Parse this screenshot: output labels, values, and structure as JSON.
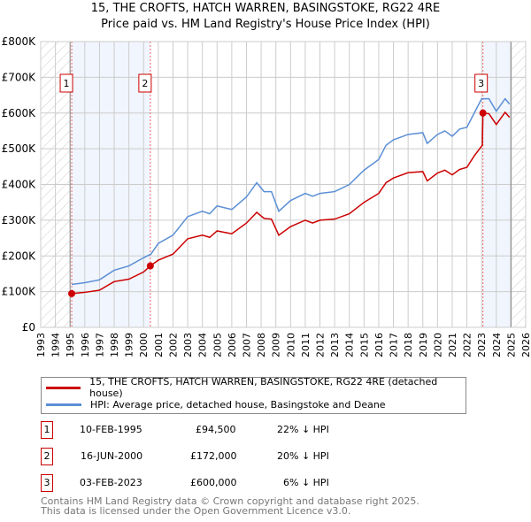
{
  "chart_data": {
    "type": "line",
    "title": "15, THE CROFTS, HATCH WARREN, BASINGSTOKE, RG22 4RE",
    "subtitle": "Price paid vs. HM Land Registry's House Price Index (HPI)",
    "xlim": [
      1993,
      2026
    ],
    "ylim": [
      0,
      800000
    ],
    "x_ticks": [
      "1993",
      "1994",
      "1995",
      "1996",
      "1997",
      "1998",
      "1999",
      "2000",
      "2001",
      "2002",
      "2003",
      "2004",
      "2005",
      "2006",
      "2007",
      "2008",
      "2009",
      "2010",
      "2011",
      "2012",
      "2013",
      "2014",
      "2015",
      "2016",
      "2017",
      "2018",
      "2019",
      "2020",
      "2021",
      "2022",
      "2023",
      "2024",
      "2025",
      "2026"
    ],
    "y_ticks": [
      {
        "v": 0,
        "label": "£0"
      },
      {
        "v": 100000,
        "label": "£100K"
      },
      {
        "v": 200000,
        "label": "£200K"
      },
      {
        "v": 300000,
        "label": "£300K"
      },
      {
        "v": 400000,
        "label": "£400K"
      },
      {
        "v": 500000,
        "label": "£500K"
      },
      {
        "v": 600000,
        "label": "£600K"
      },
      {
        "v": 700000,
        "label": "£700K"
      },
      {
        "v": 800000,
        "label": "£800K"
      }
    ],
    "grid": true,
    "series": [
      {
        "name": "15, THE CROFTS, HATCH WARREN, BASINGSTOKE, RG22 4RE (detached house)",
        "color": "#cc0000",
        "x": [
          1995.11,
          1996,
          1997,
          1998,
          1999,
          2000,
          2000.46,
          2001,
          2002,
          2003,
          2004,
          2004.5,
          2005,
          2006,
          2007,
          2007.7,
          2008.2,
          2008.7,
          2009.2,
          2010,
          2011,
          2011.5,
          2012,
          2013,
          2014,
          2015,
          2016,
          2016.5,
          2017,
          2018,
          2019,
          2019.3,
          2020,
          2020.5,
          2021,
          2021.5,
          2022,
          2022.5,
          2023.05,
          2023.09,
          2023.5,
          2024,
          2024.6,
          2024.9
        ],
        "y": [
          94500,
          98000,
          104000,
          128000,
          135000,
          155000,
          172000,
          188000,
          205000,
          248000,
          258000,
          252000,
          270000,
          262000,
          292000,
          322000,
          305000,
          303000,
          258000,
          282000,
          300000,
          292000,
          300000,
          303000,
          318000,
          350000,
          375000,
          405000,
          418000,
          433000,
          436000,
          410000,
          432000,
          440000,
          427000,
          442000,
          448000,
          480000,
          510000,
          600000,
          598000,
          568000,
          602000,
          588000
        ]
      },
      {
        "name": "HPI: Average price, detached house, Basingstoke and Deane",
        "color": "#5b8fd6",
        "x": [
          1995.11,
          1996,
          1997,
          1998,
          1999,
          2000,
          2000.5,
          2001,
          2002,
          2003,
          2004,
          2004.5,
          2005,
          2006,
          2007,
          2007.7,
          2008.2,
          2008.7,
          2009.2,
          2010,
          2011,
          2011.5,
          2012,
          2013,
          2014,
          2015,
          2016,
          2016.5,
          2017,
          2018,
          2019,
          2019.3,
          2020,
          2020.5,
          2021,
          2021.5,
          2022,
          2022.5,
          2023,
          2023.5,
          2024,
          2024.6,
          2024.9
        ],
        "y": [
          120000,
          125000,
          133000,
          160000,
          172000,
          195000,
          205000,
          235000,
          258000,
          310000,
          325000,
          318000,
          340000,
          330000,
          365000,
          405000,
          380000,
          380000,
          325000,
          355000,
          375000,
          367000,
          375000,
          380000,
          400000,
          440000,
          470000,
          510000,
          525000,
          540000,
          545000,
          515000,
          540000,
          550000,
          535000,
          555000,
          560000,
          600000,
          640000,
          640000,
          605000,
          640000,
          625000
        ]
      }
    ],
    "sales": [
      {
        "n": "1",
        "x": 1995.11,
        "date": "10-FEB-1995",
        "price": 94500,
        "price_label": "£94,500",
        "hpi": "22% ↓ HPI"
      },
      {
        "n": "2",
        "x": 2000.46,
        "date": "16-JUN-2000",
        "price": 172000,
        "price_label": "£172,000",
        "hpi": "20% ↓ HPI"
      },
      {
        "n": "3",
        "x": 2023.09,
        "date": "03-FEB-2023",
        "price": 600000,
        "price_label": "£600,000",
        "hpi": "6% ↓ HPI"
      }
    ],
    "hatch_before": 1995,
    "hatch_after": 2025
  },
  "footer": {
    "line1": "Contains HM Land Registry data © Crown copyright and database right 2025.",
    "line2": "This data is licensed under the Open Government Licence v3.0."
  }
}
